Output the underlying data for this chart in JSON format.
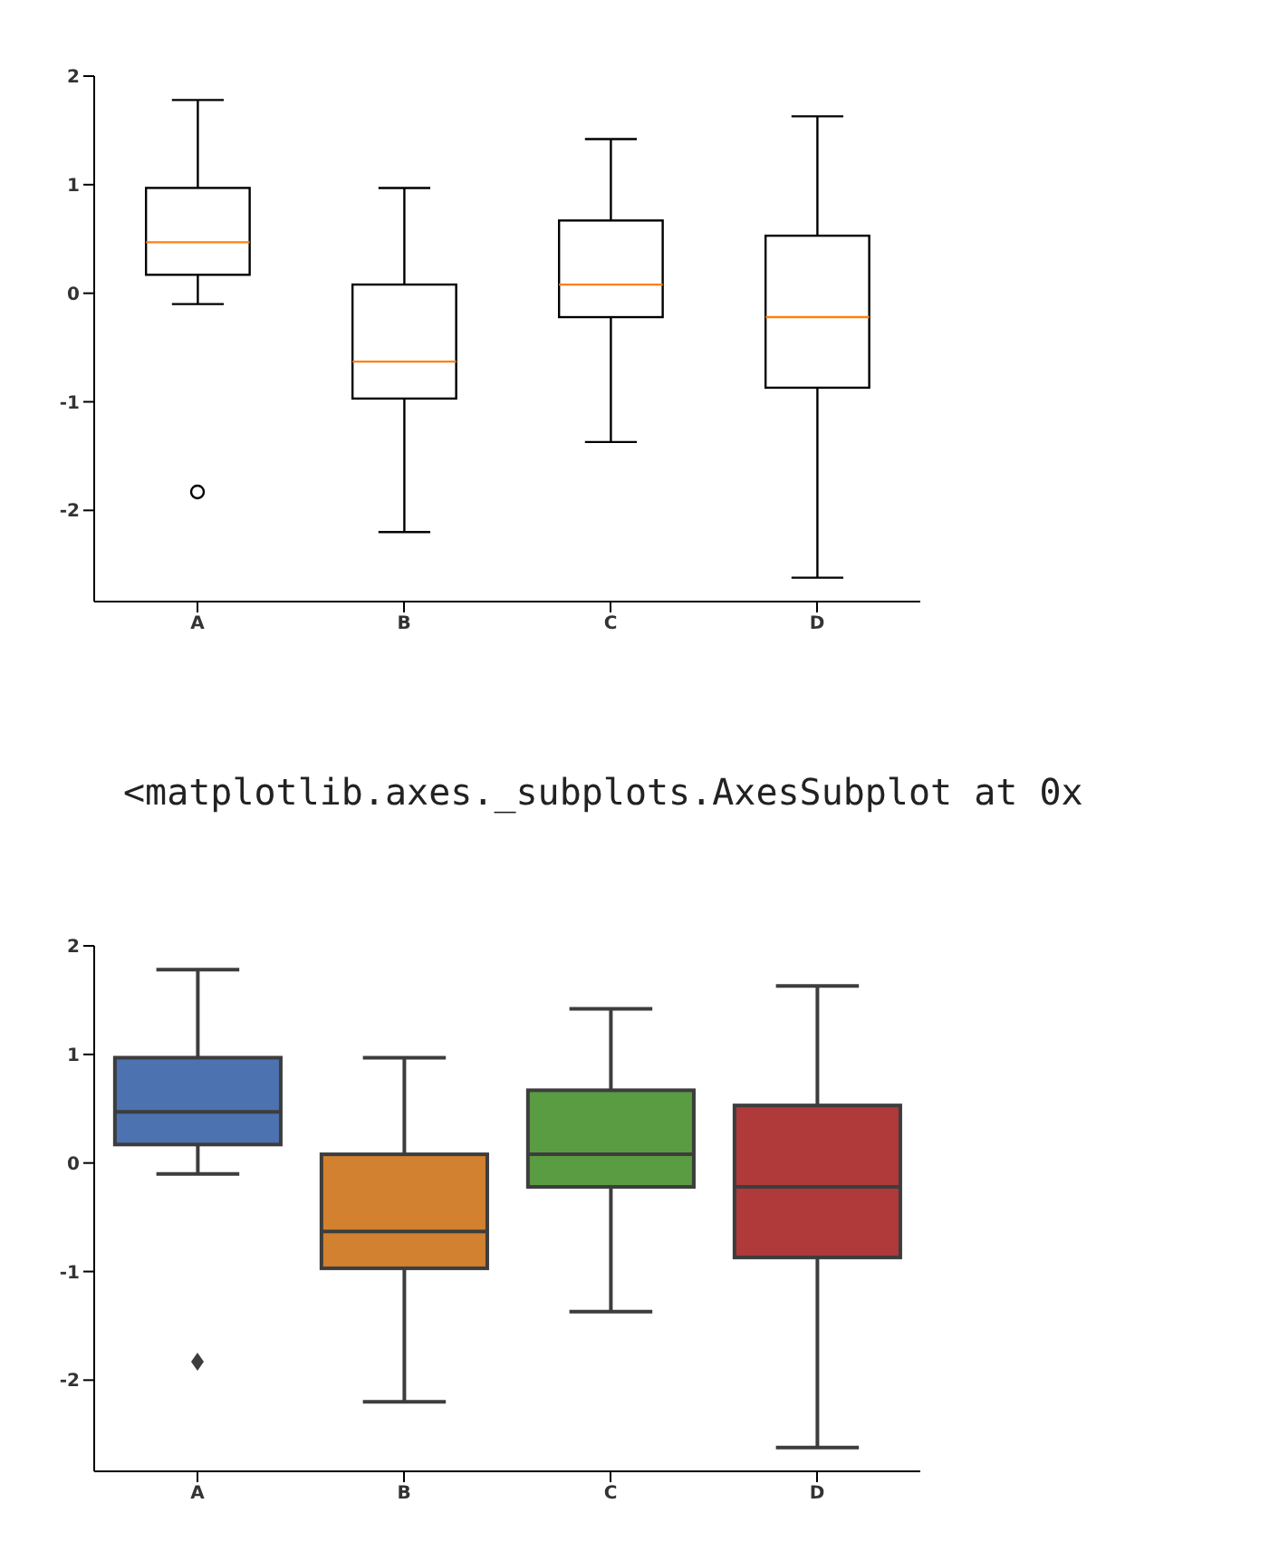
{
  "chart_data": [
    {
      "type": "box",
      "categories": [
        "A",
        "B",
        "C",
        "D"
      ],
      "ylim": [
        -2.84,
        2.0
      ],
      "yticks": [
        -2,
        -1,
        0,
        1,
        2
      ],
      "marker": "circle",
      "grid": false,
      "boxes": [
        {
          "low": -0.1,
          "q1": 0.17,
          "median": 0.47,
          "q3": 0.97,
          "high": 1.78,
          "outliers": [
            -1.83
          ]
        },
        {
          "low": -2.2,
          "q1": -0.97,
          "median": -0.63,
          "q3": 0.08,
          "high": 0.97
        },
        {
          "low": -1.37,
          "q1": -0.22,
          "median": 0.08,
          "q3": 0.67,
          "high": 1.42
        },
        {
          "low": -2.62,
          "q1": -0.87,
          "median": -0.22,
          "q3": 0.53,
          "high": 1.63
        }
      ]
    },
    {
      "type": "box",
      "categories": [
        "A",
        "B",
        "C",
        "D"
      ],
      "ylim": [
        -2.84,
        2.0
      ],
      "yticks": [
        -2,
        -1,
        0,
        1,
        2
      ],
      "marker": "diamond",
      "grid": false,
      "colors": [
        "#4c72b0",
        "#d1812f",
        "#5a9c41",
        "#b0393a"
      ],
      "annotations": [
        "<matplotlib.axes._subplots.AxesSubplot at 0x"
      ],
      "boxes": [
        {
          "low": -0.1,
          "q1": 0.17,
          "median": 0.47,
          "q3": 0.97,
          "high": 1.78,
          "outliers": [
            -1.83
          ]
        },
        {
          "low": -2.2,
          "q1": -0.97,
          "median": -0.63,
          "q3": 0.08,
          "high": 0.97
        },
        {
          "low": -1.37,
          "q1": -0.22,
          "median": 0.08,
          "q3": 0.67,
          "high": 1.42
        },
        {
          "low": -2.62,
          "q1": -0.87,
          "median": -0.22,
          "q3": 0.53,
          "high": 1.63
        }
      ]
    }
  ]
}
